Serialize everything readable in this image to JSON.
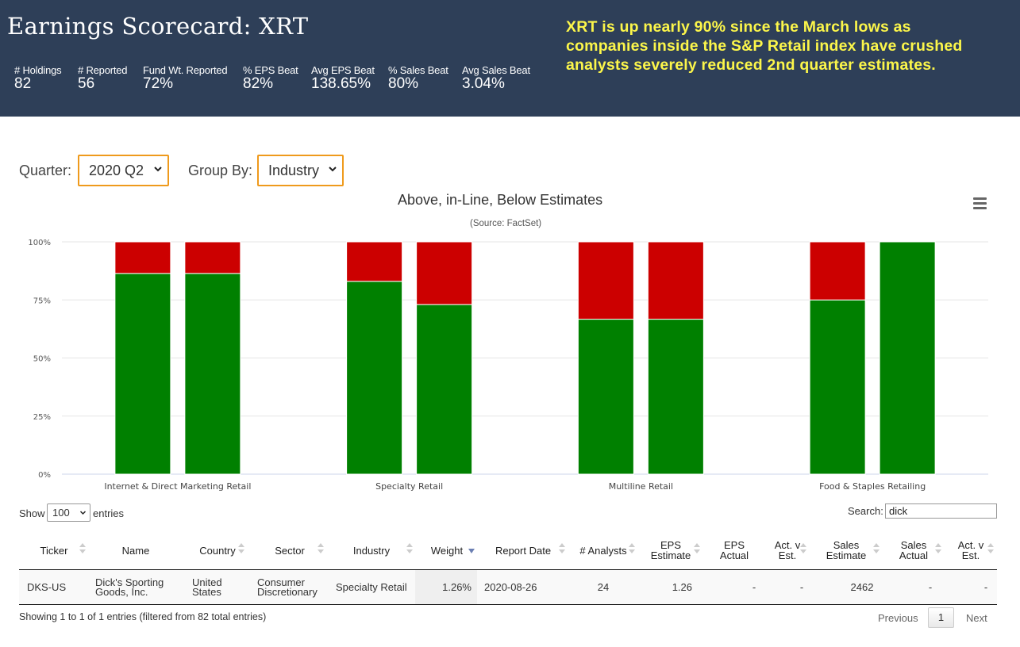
{
  "header": {
    "title": "Earnings Scorecard: XRT",
    "stats": [
      {
        "label": "# Holdings",
        "value": "82"
      },
      {
        "label": "# Reported",
        "value": "56"
      },
      {
        "label": "Fund Wt. Reported",
        "value": "72%"
      },
      {
        "label": "% EPS Beat",
        "value": "82%"
      },
      {
        "label": "Avg EPS Beat",
        "value": "138.65%"
      },
      {
        "label": "% Sales Beat",
        "value": "80%"
      },
      {
        "label": "Avg Sales Beat",
        "value": "3.04%"
      }
    ],
    "callout": "XRT is up nearly 90% since the March lows as companies inside the S&P Retail index have crushed analysts severely reduced 2nd quarter estimates.",
    "callout_color": "#fcf64a",
    "background": "#2e3f58"
  },
  "controls": {
    "quarter_label": "Quarter:",
    "quarter_value": "2020 Q2",
    "group_label": "Group By:",
    "group_value": "Industry",
    "accent_color": "#ef9a1c"
  },
  "chart_data": {
    "type": "bar",
    "stacked": "percent",
    "title": "Above, in-Line, Below Estimates",
    "subtitle": "(Source: FactSet)",
    "categories": [
      "Internet & Direct Marketing Retail",
      "Specialty Retail",
      "Multiline Retail",
      "Food & Staples Retailing"
    ],
    "bars_per_category": 2,
    "series": [
      {
        "color": "#008000",
        "values": [
          [
            86.4,
            86.4
          ],
          [
            83,
            73
          ],
          [
            66.7,
            66.7
          ],
          [
            75,
            100
          ]
        ]
      },
      {
        "color": "#cc0000",
        "values": [
          [
            13.6,
            13.6
          ],
          [
            17,
            27
          ],
          [
            33.3,
            33.3
          ],
          [
            25,
            0
          ]
        ]
      }
    ],
    "yticks": [
      "0%",
      "25%",
      "50%",
      "75%",
      "100%"
    ],
    "ylim": [
      0,
      100
    ],
    "grid": true,
    "menu_icon": "hamburger-icon"
  },
  "table": {
    "show_label": "Show",
    "length_value": "100",
    "entries_label": "entries",
    "search_label": "Search:",
    "search_value": "dick",
    "columns": [
      "Ticker",
      "Name",
      "Country",
      "Sector",
      "Industry",
      "Weight",
      "Report Date",
      "# Analysts",
      "EPS Estimate",
      "EPS Actual",
      "Act. v Est.",
      "Sales Estimate",
      "Sales Actual",
      "Act. v Est."
    ],
    "rows": [
      [
        "DKS-US",
        "Dick's Sporting Goods, Inc.",
        "United States",
        "Consumer Discretionary",
        "Specialty Retail",
        "1.26%",
        "2020-08-26",
        "24",
        "1.26",
        "-",
        "-",
        "2462",
        "-",
        "-"
      ]
    ],
    "info": "Showing 1 to 1 of 1 entries (filtered from 82 total entries)",
    "pagination": {
      "previous": "Previous",
      "current": "1",
      "next": "Next"
    }
  }
}
